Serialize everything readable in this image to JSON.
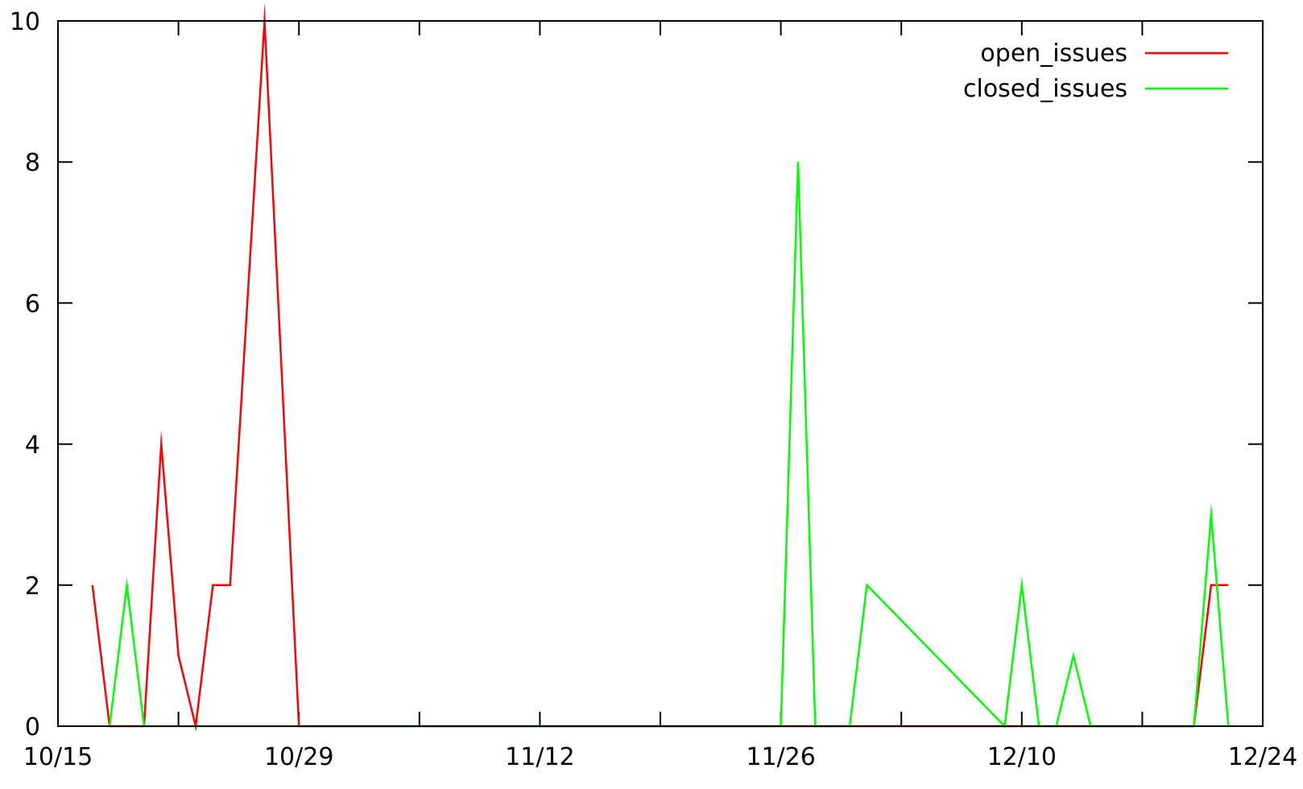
{
  "chart_data": {
    "type": "line",
    "title": "",
    "xlabel": "",
    "ylabel": "",
    "x_range": [
      "10/15",
      "12/24"
    ],
    "xlim_days": [
      0,
      70
    ],
    "x_ticks": [
      {
        "label": "10/15",
        "day": 0
      },
      {
        "label": "10/29",
        "day": 14
      },
      {
        "label": "11/12",
        "day": 28
      },
      {
        "label": "11/26",
        "day": 42
      },
      {
        "label": "12/10",
        "day": 56
      },
      {
        "label": "12/24",
        "day": 70
      }
    ],
    "x_minor_ticks_days": [
      7,
      21,
      35,
      49,
      63
    ],
    "ylim": [
      0,
      10
    ],
    "y_ticks": [
      0,
      2,
      4,
      6,
      8,
      10
    ],
    "grid": false,
    "legend_position": "top-right",
    "series": [
      {
        "name": "open_issues",
        "color": "#ff0000",
        "points": [
          {
            "day": 2,
            "y": 2
          },
          {
            "day": 3,
            "y": 0
          },
          {
            "day": 4,
            "y": 0
          },
          {
            "day": 5,
            "y": 0
          },
          {
            "day": 6,
            "y": 4
          },
          {
            "day": 7,
            "y": 1
          },
          {
            "day": 8,
            "y": 0
          },
          {
            "day": 9,
            "y": 2
          },
          {
            "day": 10,
            "y": 2
          },
          {
            "day": 12,
            "y": 10
          },
          {
            "day": 14,
            "y": 0
          },
          {
            "day": 42,
            "y": 0
          },
          {
            "day": 66,
            "y": 0
          },
          {
            "day": 67,
            "y": 2
          },
          {
            "day": 68,
            "y": 2
          }
        ]
      },
      {
        "name": "closed_issues",
        "color": "#00ff00",
        "points": [
          {
            "day": 3,
            "y": 0
          },
          {
            "day": 4,
            "y": 2
          },
          {
            "day": 5,
            "y": 0
          },
          {
            "day": 17,
            "y": 0
          },
          {
            "day": 42,
            "y": 0
          },
          {
            "day": 43,
            "y": 8
          },
          {
            "day": 44,
            "y": 0
          },
          {
            "day": 46,
            "y": 0
          },
          {
            "day": 47,
            "y": 2
          },
          {
            "day": 55,
            "y": 0
          },
          {
            "day": 56,
            "y": 2
          },
          {
            "day": 57,
            "y": 0
          },
          {
            "day": 58,
            "y": 0
          },
          {
            "day": 59,
            "y": 1
          },
          {
            "day": 60,
            "y": 0
          },
          {
            "day": 66,
            "y": 0
          },
          {
            "day": 67,
            "y": 3
          },
          {
            "day": 68,
            "y": 0
          }
        ]
      }
    ]
  }
}
